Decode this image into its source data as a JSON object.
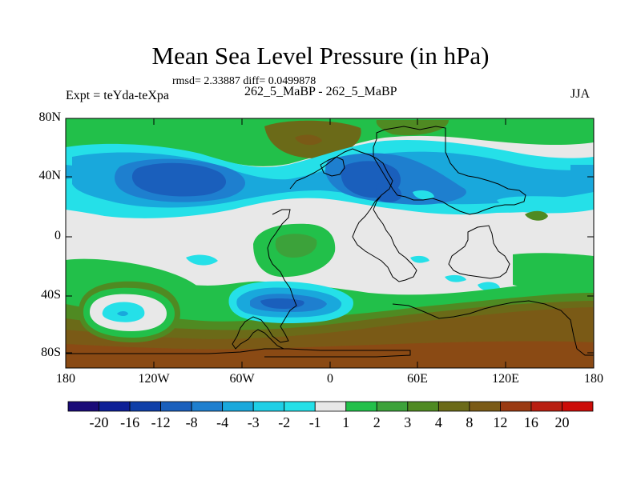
{
  "title": "Mean Sea Level Pressure (in hPa)",
  "stats": "rmsd= 2.33887 diff= 0.0499878",
  "left_label": "Expt = teYda-teXpa",
  "center_label": "262_5_MaBP - 262_5_MaBP",
  "season": "JJA",
  "lat_labels": [
    "80N",
    "40N",
    "0",
    "40S",
    "80S"
  ],
  "lon_labels": [
    "180",
    "120W",
    "60W",
    "0",
    "60E",
    "120E",
    "180"
  ],
  "colorbar": {
    "labels": [
      "-20",
      "-16",
      "-12",
      "-8",
      "-4",
      "-3",
      "-2",
      "-1",
      "1",
      "2",
      "3",
      "4",
      "8",
      "12",
      "16",
      "20"
    ],
    "colors": [
      "#1a0b78",
      "#0d1f96",
      "#0f3fa8",
      "#1a5fbc",
      "#1e7fcf",
      "#19a8dc",
      "#1ecfe6",
      "#25e0e8",
      "#e8e8e8",
      "#22c04a",
      "#3ca23a",
      "#4f8a22",
      "#6b6a18",
      "#7a5a16",
      "#9a3a12",
      "#b81e10",
      "#cc0c08"
    ]
  },
  "palette": {
    "neutral": "#e8e8e8",
    "green": "#22c04a",
    "dark_green": "#4f8a22",
    "olive": "#6b6a18",
    "brown": "#7a5a16",
    "rust": "#8a4a14",
    "cyan": "#25e0e8",
    "light_blue": "#19a8dc",
    "mid_blue": "#1e7fcf",
    "blue": "#1a5fbc"
  }
}
